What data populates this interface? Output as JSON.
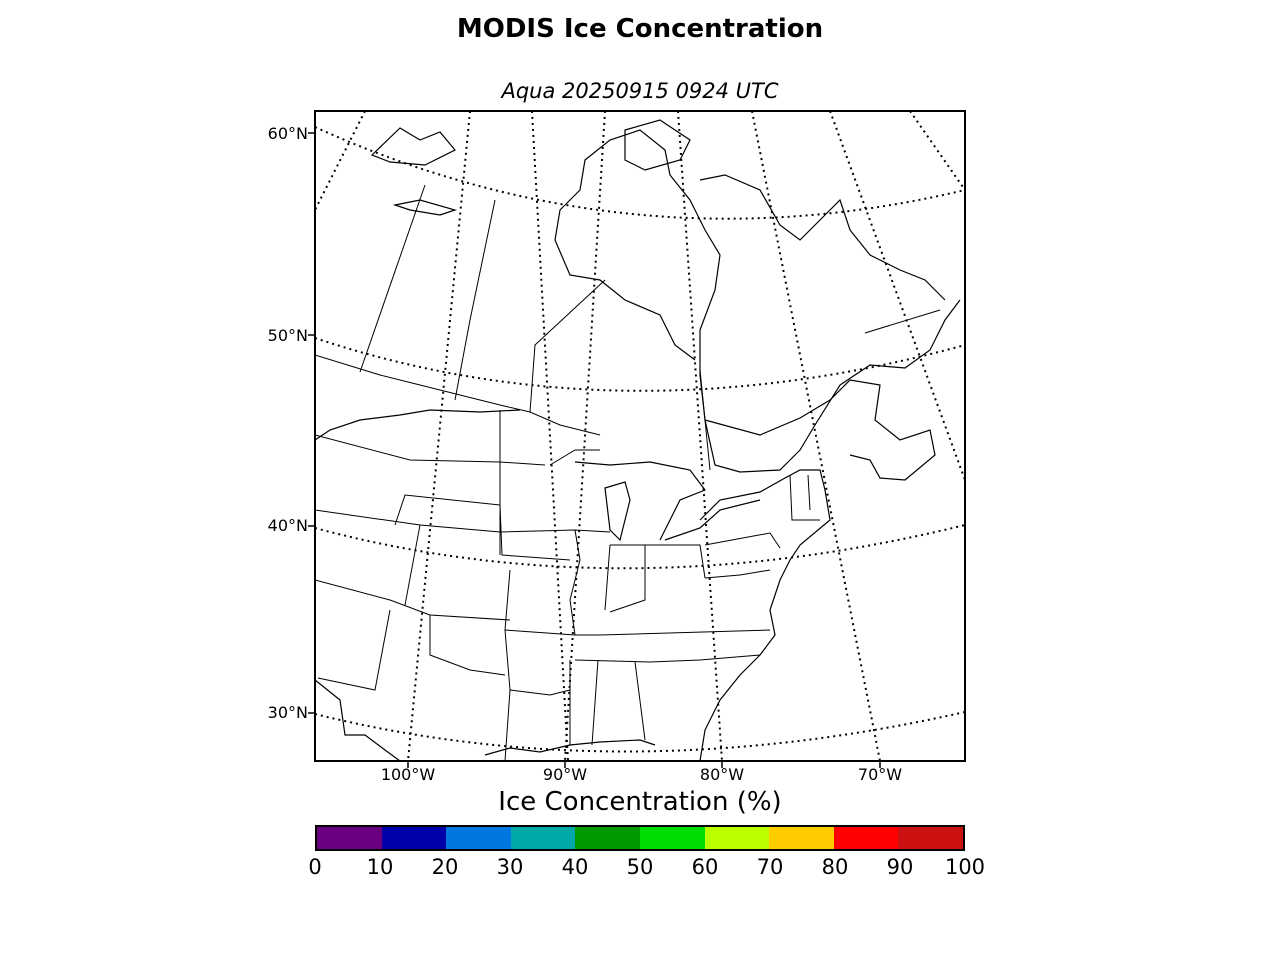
{
  "title": "MODIS Ice Concentration",
  "subtitle": "Aqua 20250915 0924 UTC",
  "map": {
    "lat_labels": [
      "60°N",
      "50°N",
      "40°N",
      "30°N"
    ],
    "lon_labels": [
      "100°W",
      "90°W",
      "80°W",
      "70°W"
    ],
    "region": "eastern North America"
  },
  "colorbar": {
    "label": "Ice Concentration (%)",
    "colors": [
      "#6a0080",
      "#0000a8",
      "#0077e0",
      "#00a8a8",
      "#009900",
      "#00dd00",
      "#bbff00",
      "#ffcc00",
      "#ff0000",
      "#cc1111"
    ],
    "ticks": [
      "0",
      "10",
      "20",
      "30",
      "40",
      "50",
      "60",
      "70",
      "80",
      "90",
      "100"
    ]
  }
}
